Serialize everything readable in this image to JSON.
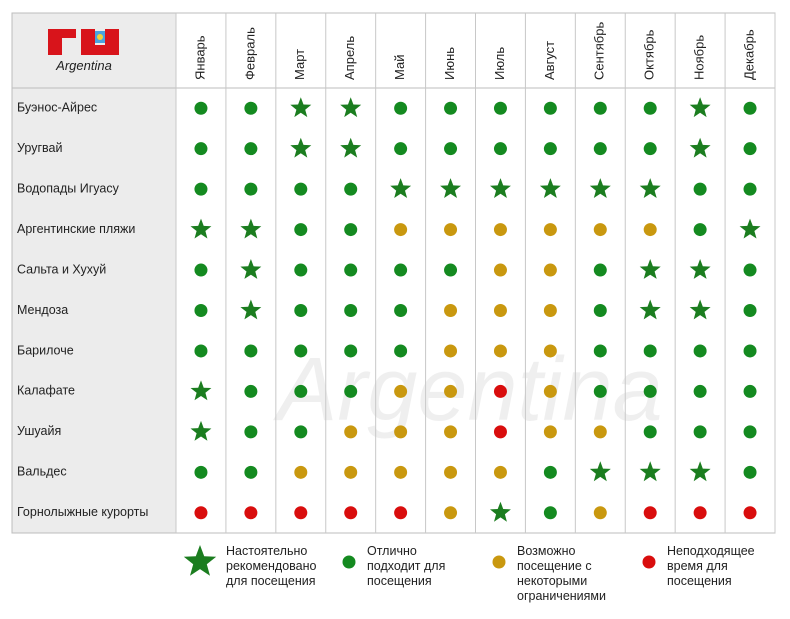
{
  "logo_text": "Argentina",
  "table": {
    "months": [
      "Январь",
      "Февраль",
      "Март",
      "Апрель",
      "Май",
      "Июнь",
      "Июль",
      "Август",
      "Сентябрь",
      "Октябрь",
      "Ноябрь",
      "Декабрь"
    ],
    "rows": [
      {
        "name": "Буэнос-Айрес",
        "statuses": [
          "good",
          "good",
          "best",
          "best",
          "good",
          "good",
          "good",
          "good",
          "good",
          "good",
          "best",
          "good"
        ]
      },
      {
        "name": "Уругвай",
        "statuses": [
          "good",
          "good",
          "best",
          "best",
          "good",
          "good",
          "good",
          "good",
          "good",
          "good",
          "best",
          "good"
        ]
      },
      {
        "name": "Водопады Игуасу",
        "statuses": [
          "good",
          "good",
          "good",
          "good",
          "best",
          "best",
          "best",
          "best",
          "best",
          "best",
          "good",
          "good"
        ]
      },
      {
        "name": "Аргентинские пляжи",
        "statuses": [
          "best",
          "best",
          "good",
          "good",
          "limited",
          "limited",
          "limited",
          "limited",
          "limited",
          "limited",
          "good",
          "best"
        ]
      },
      {
        "name": "Сальта и Хухуй",
        "statuses": [
          "good",
          "best",
          "good",
          "good",
          "good",
          "good",
          "limited",
          "limited",
          "good",
          "best",
          "best",
          "good"
        ]
      },
      {
        "name": "Мендоза",
        "statuses": [
          "good",
          "best",
          "good",
          "good",
          "good",
          "limited",
          "limited",
          "limited",
          "good",
          "best",
          "best",
          "good"
        ]
      },
      {
        "name": "Барилоче",
        "statuses": [
          "good",
          "good",
          "good",
          "good",
          "good",
          "limited",
          "limited",
          "limited",
          "good",
          "good",
          "good",
          "good"
        ]
      },
      {
        "name": "Калафате",
        "statuses": [
          "best",
          "good",
          "good",
          "good",
          "limited",
          "limited",
          "bad",
          "limited",
          "good",
          "good",
          "good",
          "good"
        ]
      },
      {
        "name": "Ушуайя",
        "statuses": [
          "best",
          "good",
          "good",
          "limited",
          "limited",
          "limited",
          "bad",
          "limited",
          "limited",
          "good",
          "good",
          "good"
        ]
      },
      {
        "name": "Вальдес",
        "statuses": [
          "good",
          "good",
          "limited",
          "limited",
          "limited",
          "limited",
          "limited",
          "good",
          "best",
          "best",
          "best",
          "good"
        ]
      },
      {
        "name": "Горнолыжные курорты",
        "statuses": [
          "bad",
          "bad",
          "bad",
          "bad",
          "bad",
          "limited",
          "best",
          "good",
          "limited",
          "bad",
          "bad",
          "bad"
        ]
      }
    ]
  },
  "legend": [
    {
      "status": "best",
      "color": "#1b7d1f",
      "label": "Настоятельно рекомендовано для посещения"
    },
    {
      "status": "good",
      "color": "#148a20",
      "label": "Отлично подходит для посещения"
    },
    {
      "status": "limited",
      "color": "#c9980f",
      "label": "Возможно посещение с некоторыми ограничениями"
    },
    {
      "status": "bad",
      "color": "#d90d0d",
      "label": "Неподходящее время для посещения"
    }
  ]
}
